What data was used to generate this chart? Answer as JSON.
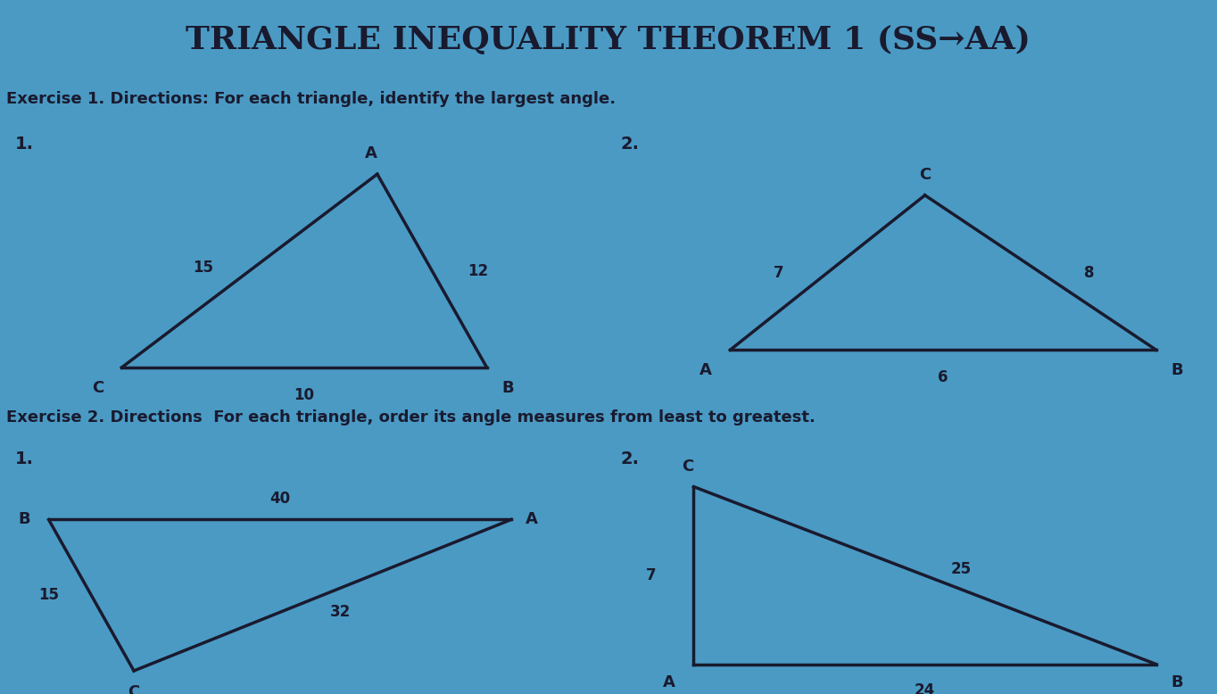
{
  "title": "TRIANGLE INEQUALITY THEOREM 1 (SS→AA)",
  "title_bg": "#e8e8c8",
  "title_color": "#1a1a2e",
  "main_bg": "#4a9ac4",
  "exercise1_label": "Exercise 1. Directions: For each triangle, identify the largest angle.",
  "exercise2_label": "Exercise 2. Directions  For each triangle, order its angle measures from least to greatest.",
  "ex1_panel_bg": "#b8d4e8",
  "ex2_panel_bg": "#b8d4e8",
  "ex_label_bg": "#d4a0b0",
  "line_color": "#1a1a2e",
  "line_width": 2.5,
  "font_size_title": 26,
  "font_size_exercise": 13,
  "font_size_labels": 13,
  "font_size_numbers": 12,
  "t1": {
    "C": [
      1.0,
      0.35
    ],
    "B": [
      4.0,
      0.35
    ],
    "A": [
      3.1,
      3.1
    ]
  },
  "t1_sides": {
    "CA": "15",
    "AB": "12",
    "CB": "10"
  },
  "t2": {
    "A": [
      6.0,
      0.6
    ],
    "B": [
      9.5,
      0.6
    ],
    "C": [
      7.6,
      2.8
    ]
  },
  "t2_sides": {
    "AC": "7",
    "CB": "8",
    "AB": "6"
  },
  "t3": {
    "B": [
      0.4,
      2.6
    ],
    "A": [
      4.2,
      2.6
    ],
    "C": [
      1.1,
      0.3
    ]
  },
  "t3_sides": {
    "BA": "40",
    "BC": "15",
    "CA": "32"
  },
  "t4": {
    "C": [
      5.7,
      3.1
    ],
    "A": [
      5.7,
      0.4
    ],
    "B": [
      9.5,
      0.4
    ]
  },
  "t4_sides": {
    "CA": "7",
    "AB": "24",
    "CB": "25"
  }
}
